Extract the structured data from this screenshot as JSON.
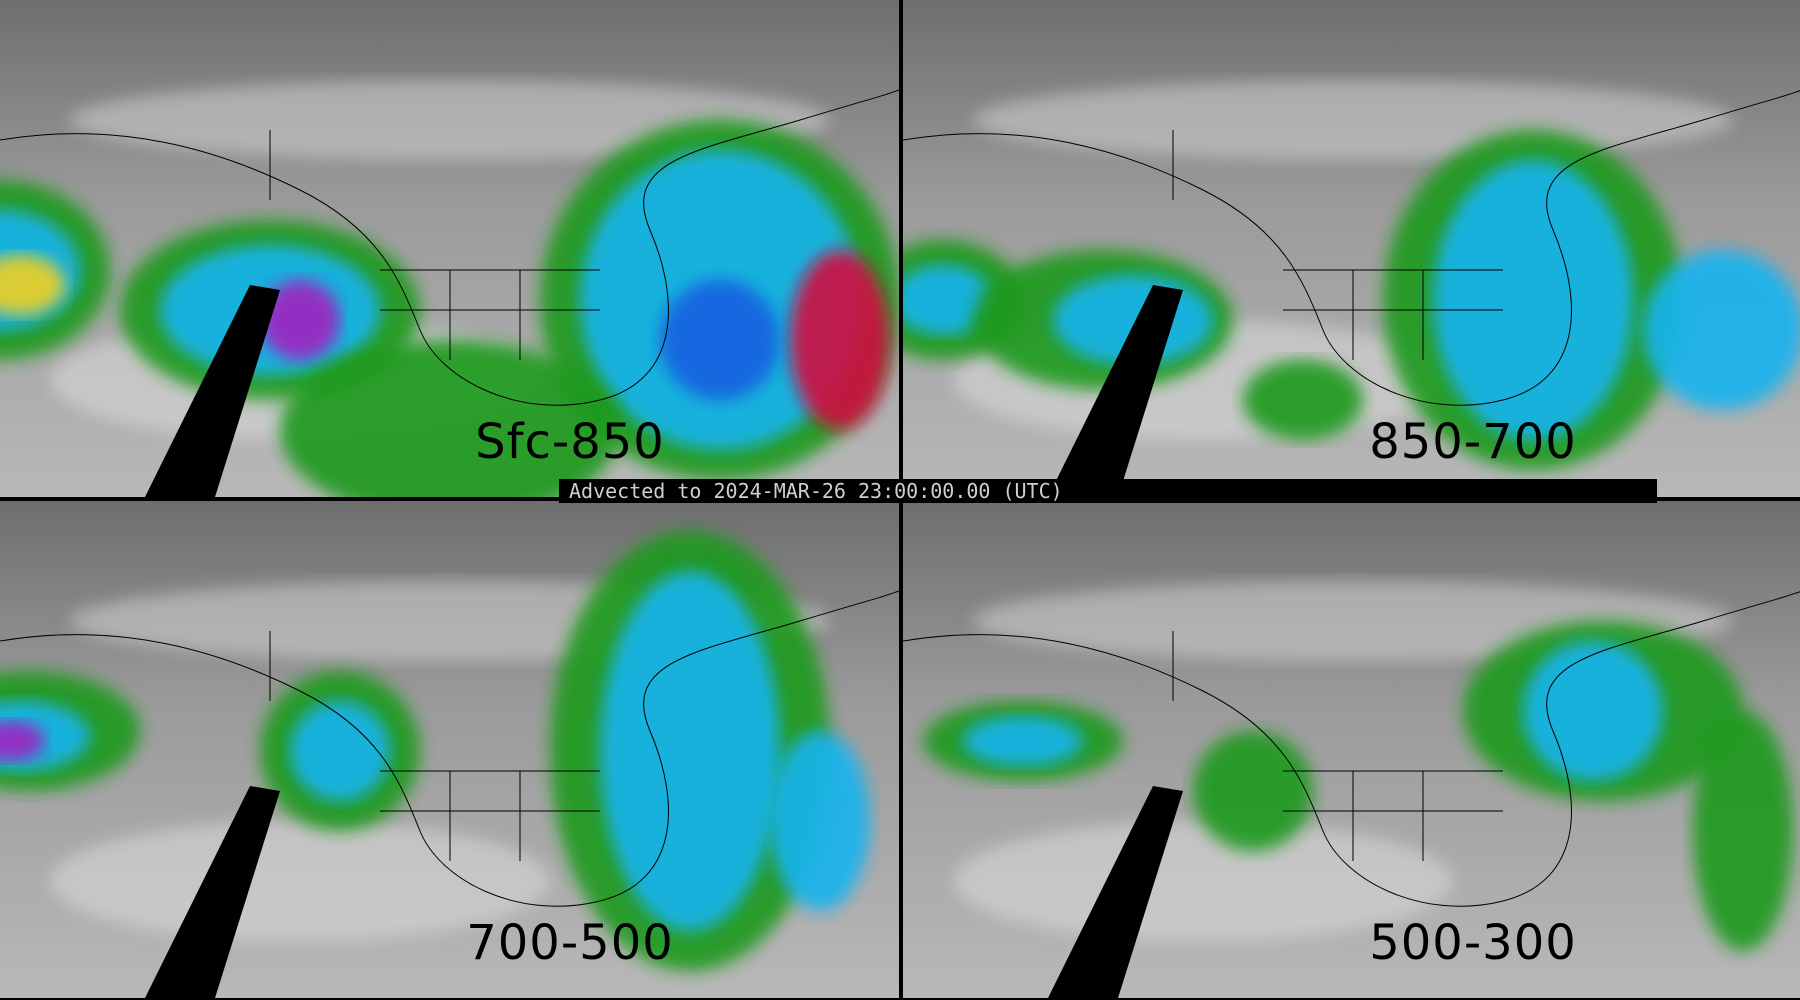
{
  "panels": [
    {
      "label": "Sfc-850",
      "moisture_level": "high"
    },
    {
      "label": "850-700",
      "moisture_level": "medium"
    },
    {
      "label": "700-500",
      "moisture_level": "medium"
    },
    {
      "label": "500-300",
      "moisture_level": "low"
    }
  ],
  "banner": {
    "text": "Advected to 2024-MAR-26 23:00:00.00 (UTC)"
  },
  "colors": {
    "background_gray": "#8a8a8a",
    "green": "#1a9a1a",
    "cyan": "#19b4f0",
    "blue": "#1560e0",
    "magenta": "#a020c0",
    "red": "#d01040",
    "yellow": "#f0d020",
    "no_data": "#000000"
  }
}
